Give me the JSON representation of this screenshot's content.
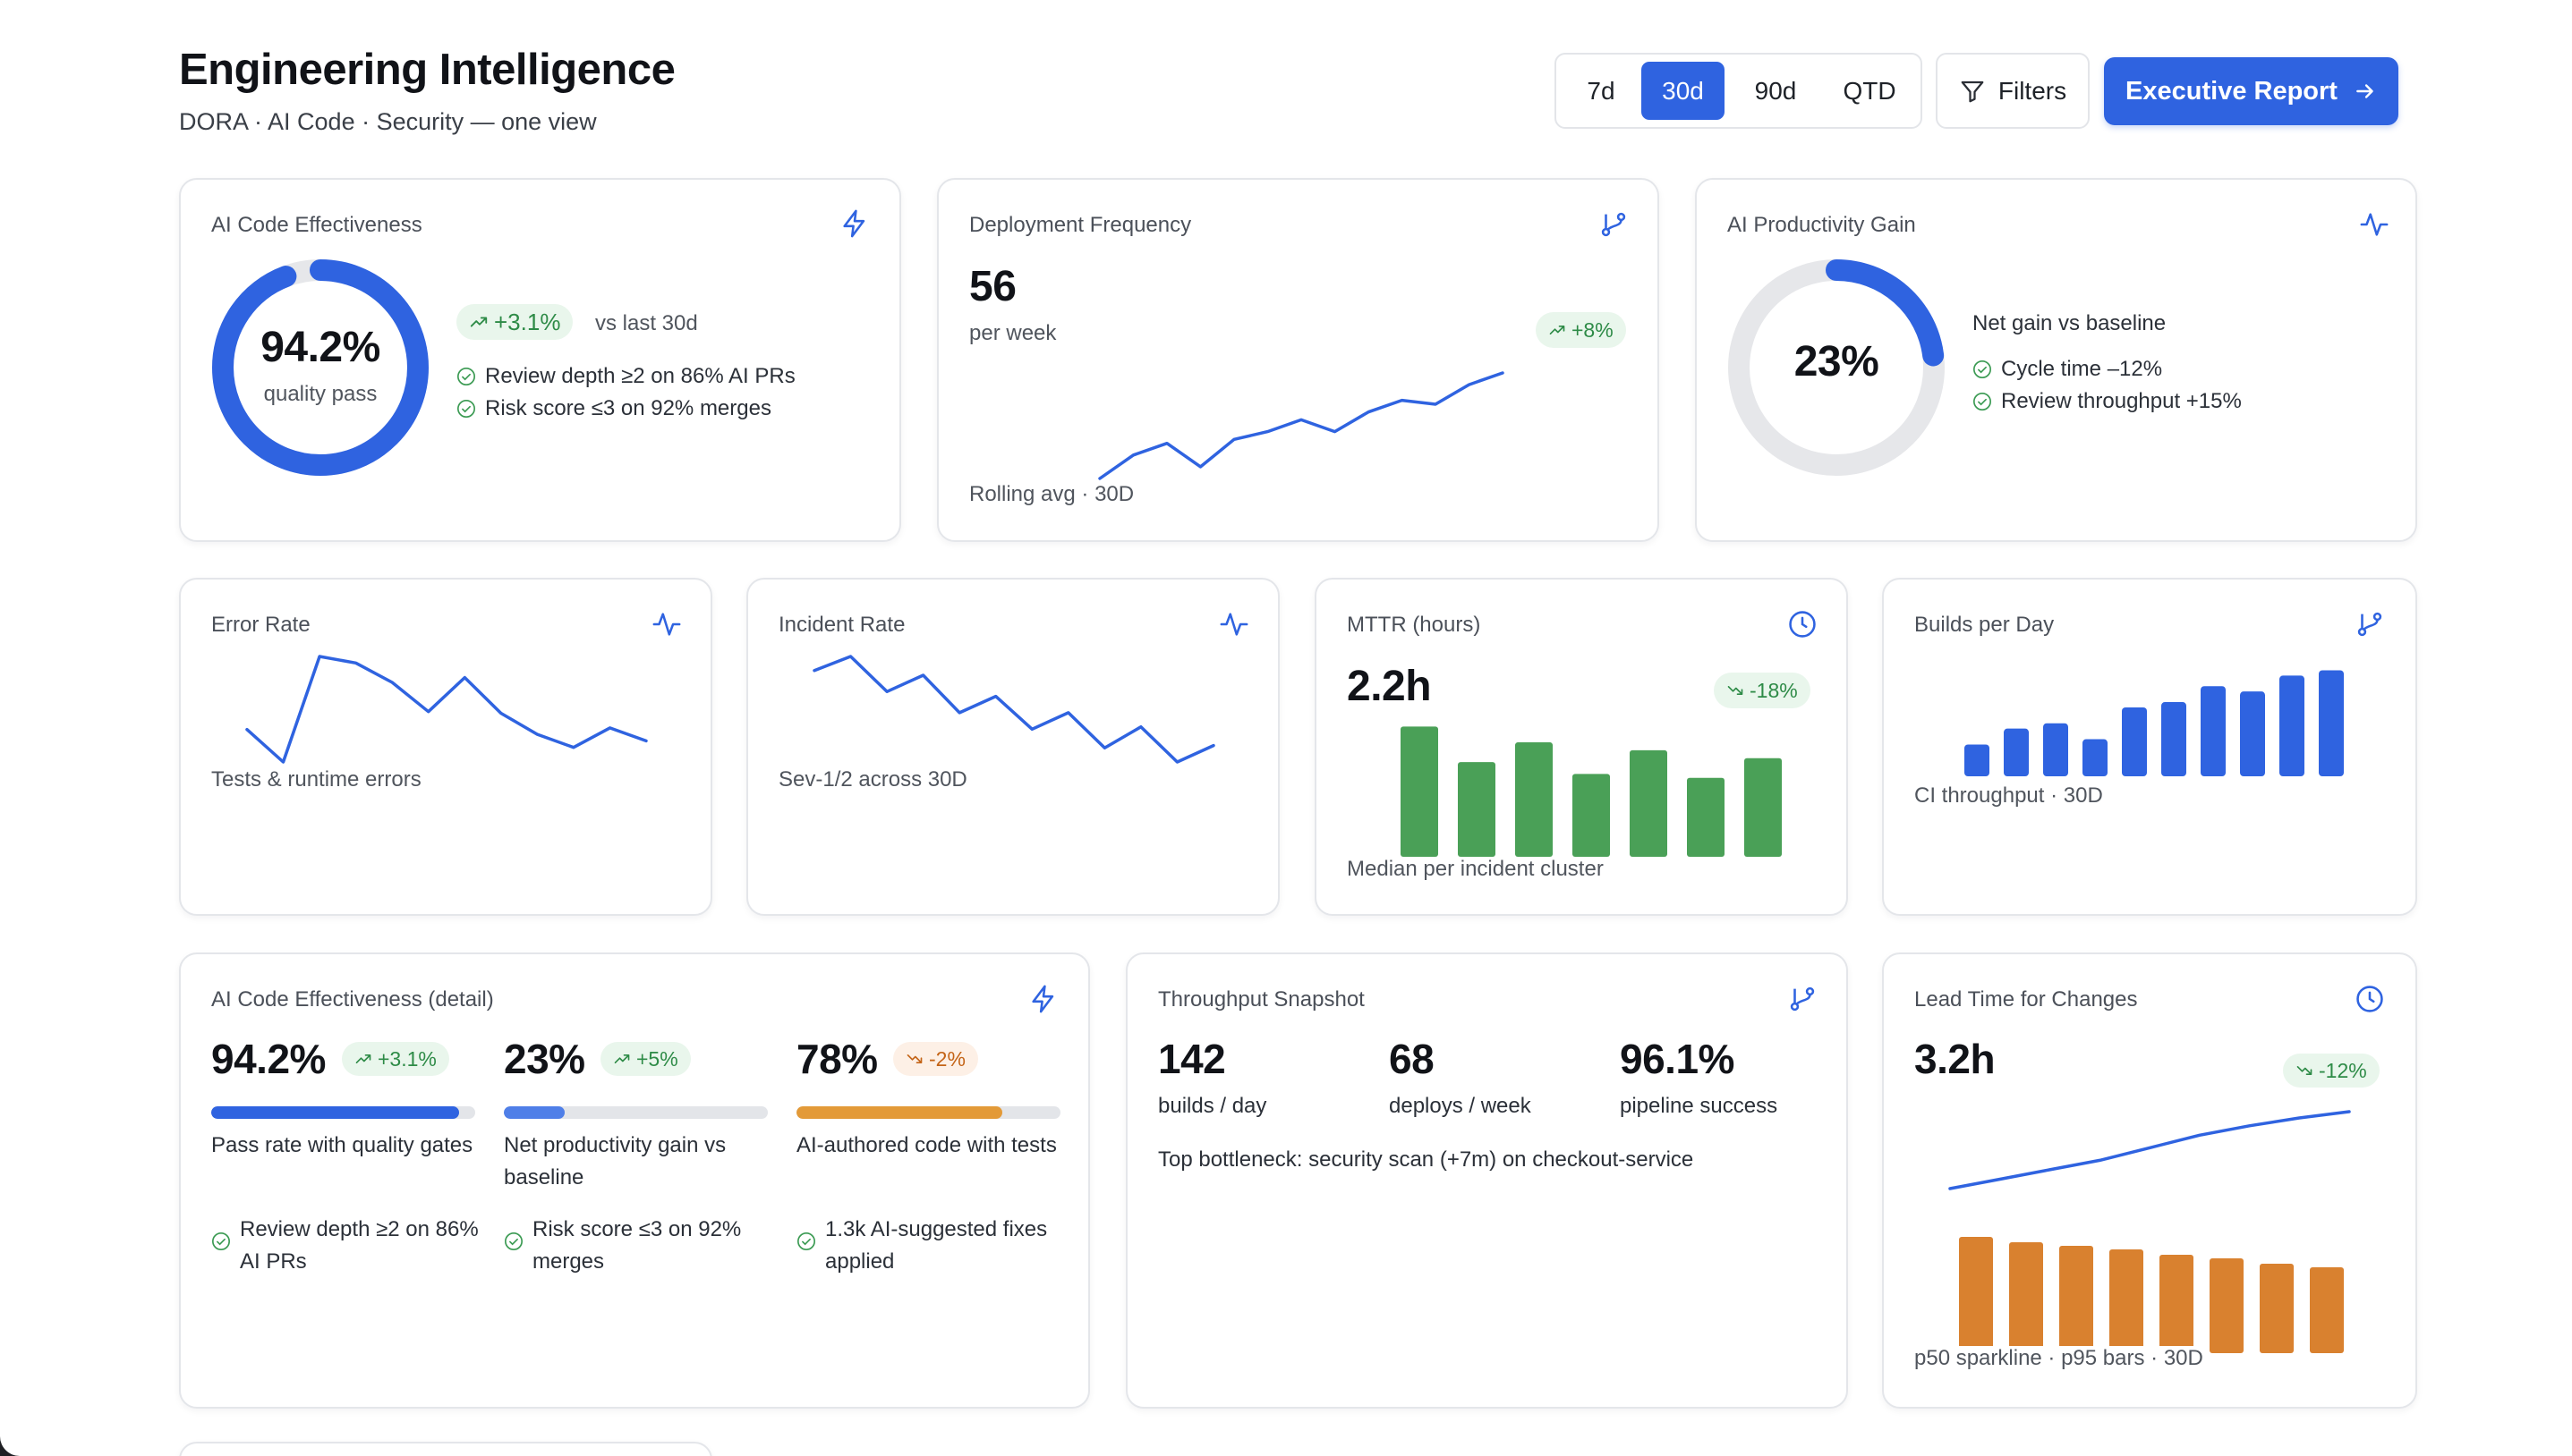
{
  "header": {
    "title": "Engineering Intelligence",
    "subtitle": "DORA · AI Code · Security — one view",
    "ranges": [
      "7d",
      "30d",
      "90d",
      "QTD"
    ],
    "active_range": "30d",
    "filters_label": "Filters",
    "executive_report_label": "Executive Report"
  },
  "colors": {
    "accent_blue": "#2f63e0",
    "green": "#4aa057",
    "orange": "#d9812f",
    "positive": "#2e8b47",
    "negative": "#c46417"
  },
  "ai_code_effectiveness": {
    "label": "AI Code Effectiveness",
    "icon": "lightning-icon",
    "value": "94.2%",
    "value_fraction": 0.942,
    "caption": "quality pass",
    "delta": "+3.1%",
    "delta_context": "vs last 30d",
    "checks": [
      "Review depth ≥2 on 86% AI PRs",
      "Risk score ≤3 on 92% merges"
    ]
  },
  "deployment_frequency": {
    "label": "Deployment Frequency",
    "icon": "git-branch-icon",
    "value": "56",
    "unit": "per week",
    "delta": "+8%",
    "footer": "Rolling avg · 30D",
    "spark": [
      10,
      16,
      19,
      13,
      20,
      22,
      25,
      22,
      27,
      30,
      29,
      34,
      37
    ]
  },
  "ai_productivity_gain": {
    "label": "AI Productivity Gain",
    "icon": "activity-icon",
    "value": "23%",
    "value_fraction": 0.23,
    "heading": "Net gain vs baseline",
    "checks": [
      "Cycle time –12%",
      "Review throughput +15%"
    ]
  },
  "error_rate": {
    "label": "Error Rate",
    "icon": "activity-icon",
    "footer": "Tests & runtime errors",
    "spark": [
      5.5,
      3.5,
      10,
      9.6,
      8.4,
      6.6,
      8.7,
      6.5,
      5.2,
      4.4,
      5.6,
      4.8
    ]
  },
  "incident_rate": {
    "label": "Incident Rate",
    "icon": "activity-icon",
    "footer": "Sev-1/2 across 30D",
    "spark": [
      8.7,
      9.3,
      7.8,
      8.5,
      6.9,
      7.6,
      6.2,
      6.9,
      5.4,
      6.3,
      4.8,
      5.5
    ]
  },
  "mttr": {
    "label": "MTTR (hours)",
    "icon": "clock-icon",
    "value": "2.2h",
    "delta": "-18%",
    "footer": "Median per incident cluster",
    "bars": [
      3.3,
      2.4,
      2.9,
      2.1,
      2.7,
      2.0,
      2.5
    ]
  },
  "builds_per_day": {
    "label": "Builds per Day",
    "icon": "git-branch-icon",
    "footer": "CI throughput · 30D",
    "bars": [
      3,
      4.5,
      5,
      3.5,
      6.5,
      7,
      8.5,
      8,
      9.5,
      10
    ]
  },
  "ai_detail": {
    "label": "AI Code Effectiveness (detail)",
    "icon": "lightning-icon",
    "metrics": [
      {
        "value": "94.2%",
        "delta": "+3.1%",
        "direction": "up",
        "fraction": 0.94,
        "description": "Pass rate with quality gates",
        "check": "Review depth ≥2 on 86% AI PRs"
      },
      {
        "value": "23%",
        "delta": "+5%",
        "direction": "up",
        "fraction": 0.23,
        "description": "Net productivity gain vs baseline",
        "check": "Risk score ≤3 on 92% merges"
      },
      {
        "value": "78%",
        "delta": "-2%",
        "direction": "down",
        "fraction": 0.78,
        "description": "AI-authored code with tests",
        "check": "1.3k AI-suggested fixes applied"
      }
    ]
  },
  "throughput": {
    "label": "Throughput Snapshot",
    "icon": "git-branch-icon",
    "stats": [
      {
        "value": "142",
        "caption": "builds / day"
      },
      {
        "value": "68",
        "caption": "deploys / week"
      },
      {
        "value": "96.1%",
        "caption": "pipeline success"
      }
    ],
    "note": "Top bottleneck: security scan (+7m) on checkout-service"
  },
  "lead_time": {
    "label": "Lead Time for Changes",
    "icon": "clock-icon",
    "value": "3.2h",
    "delta": "-12%",
    "footer": "p50 sparkline · p95 bars · 30D",
    "spark": [
      1.0,
      1.6,
      2.2,
      2.8,
      3.6,
      4.4,
      5.0,
      5.5,
      5.9
    ],
    "bars": [
      6.5,
      6.2,
      6.0,
      5.8,
      5.5,
      5.3,
      5.0,
      4.8
    ]
  }
}
